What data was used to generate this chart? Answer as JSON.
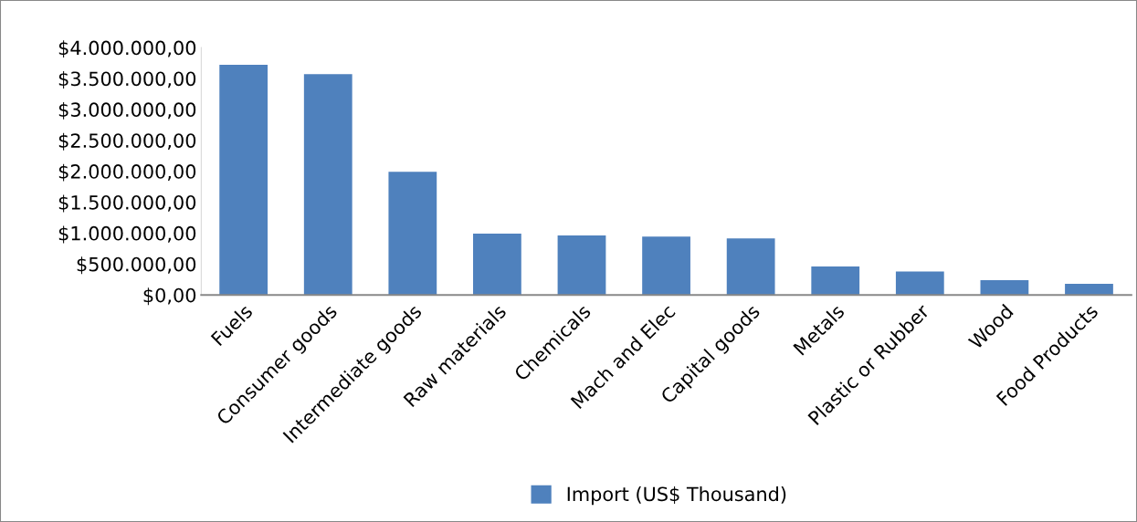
{
  "chart_data": {
    "type": "bar",
    "categories": [
      "Fuels",
      "Consumer goods",
      "Intermediate goods",
      "Raw materials",
      "Chemicals",
      "Mach and Elec",
      "Capital goods",
      "Metals",
      "Plastic or Rubber",
      "Wood",
      "Food Products"
    ],
    "series": [
      {
        "name": "Import (US$ Thousand)",
        "color": "#4f81bd",
        "values": [
          3720000,
          3570000,
          1990000,
          990000,
          960000,
          945000,
          915000,
          460000,
          380000,
          240000,
          180000
        ]
      }
    ],
    "ylim": [
      0,
      4000000
    ],
    "yticks": [
      {
        "value": 0,
        "label": "$0,00"
      },
      {
        "value": 500000,
        "label": "$500.000,00"
      },
      {
        "value": 1000000,
        "label": "$1.000.000,00"
      },
      {
        "value": 1500000,
        "label": "$1.500.000,00"
      },
      {
        "value": 2000000,
        "label": "$2.000.000,00"
      },
      {
        "value": 2500000,
        "label": "$2.500.000,00"
      },
      {
        "value": 3000000,
        "label": "$3.000.000,00"
      },
      {
        "value": 3500000,
        "label": "$3.500.000,00"
      },
      {
        "value": 4000000,
        "label": "$4.000.000,00"
      }
    ],
    "grid": false,
    "legend": "bottom"
  }
}
